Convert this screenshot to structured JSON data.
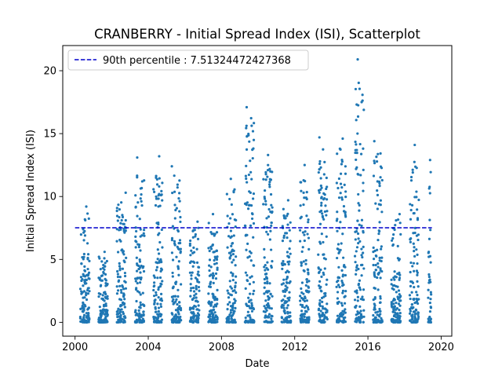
{
  "chart_data": {
    "type": "scatter",
    "title": "CRANBERRY - Initial Spread Index (ISI), Scatterplot",
    "xlabel": "Date",
    "ylabel": "Initial Spread Index (ISI)",
    "x_axis_type": "date",
    "xlim": [
      "1999-05-01",
      "2020-08-01"
    ],
    "ylim": [
      -1.1,
      22.0
    ],
    "xticks": [
      "2000",
      "2004",
      "2008",
      "2012",
      "2016",
      "2020"
    ],
    "yticks": [
      "0",
      "5",
      "10",
      "15",
      "20"
    ],
    "grid": false,
    "legend_location": "upper left",
    "threshold": {
      "label": "90th percentile : 7.51324472427368",
      "value": 7.51324472427368,
      "style": "dashed",
      "color": "#0000cc",
      "x_range": [
        "2000-01-01",
        "2019-07-01"
      ]
    },
    "series": [
      {
        "color": "#1f77b4",
        "seasons": [
          {
            "start": "2000-04-15",
            "end": "2000-10-15",
            "max": 9.2
          },
          {
            "start": "2001-04-15",
            "end": "2001-10-15",
            "max": 5.6
          },
          {
            "start": "2002-04-15",
            "end": "2002-10-15",
            "max": 10.3
          },
          {
            "start": "2003-04-15",
            "end": "2003-10-15",
            "max": 13.1
          },
          {
            "start": "2004-04-15",
            "end": "2004-10-15",
            "max": 13.2
          },
          {
            "start": "2005-04-15",
            "end": "2005-10-15",
            "max": 12.4
          },
          {
            "start": "2006-04-15",
            "end": "2006-10-15",
            "max": 8.0
          },
          {
            "start": "2007-04-15",
            "end": "2007-10-15",
            "max": 8.6
          },
          {
            "start": "2008-04-15",
            "end": "2008-10-15",
            "max": 11.4
          },
          {
            "start": "2009-04-15",
            "end": "2009-10-15",
            "max": 17.1
          },
          {
            "start": "2010-04-15",
            "end": "2010-10-15",
            "max": 13.3
          },
          {
            "start": "2011-04-15",
            "end": "2011-10-15",
            "max": 9.7
          },
          {
            "start": "2012-04-15",
            "end": "2012-10-15",
            "max": 12.5
          },
          {
            "start": "2013-04-15",
            "end": "2013-10-15",
            "max": 14.7
          },
          {
            "start": "2014-04-15",
            "end": "2014-10-15",
            "max": 14.6
          },
          {
            "start": "2015-04-15",
            "end": "2015-10-15",
            "max": 20.9
          },
          {
            "start": "2016-04-15",
            "end": "2016-10-15",
            "max": 14.4
          },
          {
            "start": "2017-04-15",
            "end": "2017-10-15",
            "max": 8.6
          },
          {
            "start": "2018-04-15",
            "end": "2018-10-15",
            "max": 14.1
          },
          {
            "start": "2019-04-15",
            "end": "2019-06-15",
            "max": 12.9
          }
        ]
      }
    ]
  }
}
